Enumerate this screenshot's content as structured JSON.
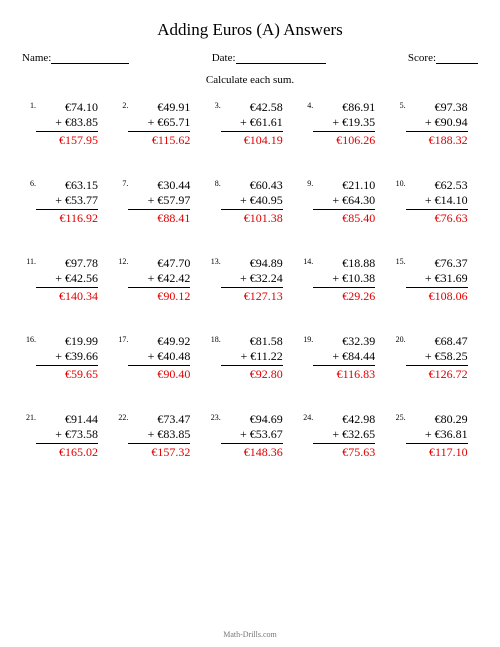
{
  "title": "Adding Euros (A) Answers",
  "name_label": "Name:",
  "date_label": "Date:",
  "score_label": "Score:",
  "instruction": "Calculate each sum.",
  "footer": "Math-Drills.com",
  "colors": {
    "answer": "#e00000",
    "text": "#000000",
    "bg": "#ffffff"
  },
  "problems": [
    {
      "n": "1.",
      "a": "€74.10",
      "b": "+ €83.85",
      "ans": "€157.95"
    },
    {
      "n": "2.",
      "a": "€49.91",
      "b": "+ €65.71",
      "ans": "€115.62"
    },
    {
      "n": "3.",
      "a": "€42.58",
      "b": "+ €61.61",
      "ans": "€104.19"
    },
    {
      "n": "4.",
      "a": "€86.91",
      "b": "+ €19.35",
      "ans": "€106.26"
    },
    {
      "n": "5.",
      "a": "€97.38",
      "b": "+ €90.94",
      "ans": "€188.32"
    },
    {
      "n": "6.",
      "a": "€63.15",
      "b": "+ €53.77",
      "ans": "€116.92"
    },
    {
      "n": "7.",
      "a": "€30.44",
      "b": "+ €57.97",
      "ans": "€88.41"
    },
    {
      "n": "8.",
      "a": "€60.43",
      "b": "+ €40.95",
      "ans": "€101.38"
    },
    {
      "n": "9.",
      "a": "€21.10",
      "b": "+ €64.30",
      "ans": "€85.40"
    },
    {
      "n": "10.",
      "a": "€62.53",
      "b": "+ €14.10",
      "ans": "€76.63"
    },
    {
      "n": "11.",
      "a": "€97.78",
      "b": "+ €42.56",
      "ans": "€140.34"
    },
    {
      "n": "12.",
      "a": "€47.70",
      "b": "+ €42.42",
      "ans": "€90.12"
    },
    {
      "n": "13.",
      "a": "€94.89",
      "b": "+ €32.24",
      "ans": "€127.13"
    },
    {
      "n": "14.",
      "a": "€18.88",
      "b": "+ €10.38",
      "ans": "€29.26"
    },
    {
      "n": "15.",
      "a": "€76.37",
      "b": "+ €31.69",
      "ans": "€108.06"
    },
    {
      "n": "16.",
      "a": "€19.99",
      "b": "+ €39.66",
      "ans": "€59.65"
    },
    {
      "n": "17.",
      "a": "€49.92",
      "b": "+ €40.48",
      "ans": "€90.40"
    },
    {
      "n": "18.",
      "a": "€81.58",
      "b": "+ €11.22",
      "ans": "€92.80"
    },
    {
      "n": "19.",
      "a": "€32.39",
      "b": "+ €84.44",
      "ans": "€116.83"
    },
    {
      "n": "20.",
      "a": "€68.47",
      "b": "+ €58.25",
      "ans": "€126.72"
    },
    {
      "n": "21.",
      "a": "€91.44",
      "b": "+ €73.58",
      "ans": "€165.02"
    },
    {
      "n": "22.",
      "a": "€73.47",
      "b": "+ €83.85",
      "ans": "€157.32"
    },
    {
      "n": "23.",
      "a": "€94.69",
      "b": "+ €53.67",
      "ans": "€148.36"
    },
    {
      "n": "24.",
      "a": "€42.98",
      "b": "+ €32.65",
      "ans": "€75.63"
    },
    {
      "n": "25.",
      "a": "€80.29",
      "b": "+ €36.81",
      "ans": "€117.10"
    }
  ]
}
